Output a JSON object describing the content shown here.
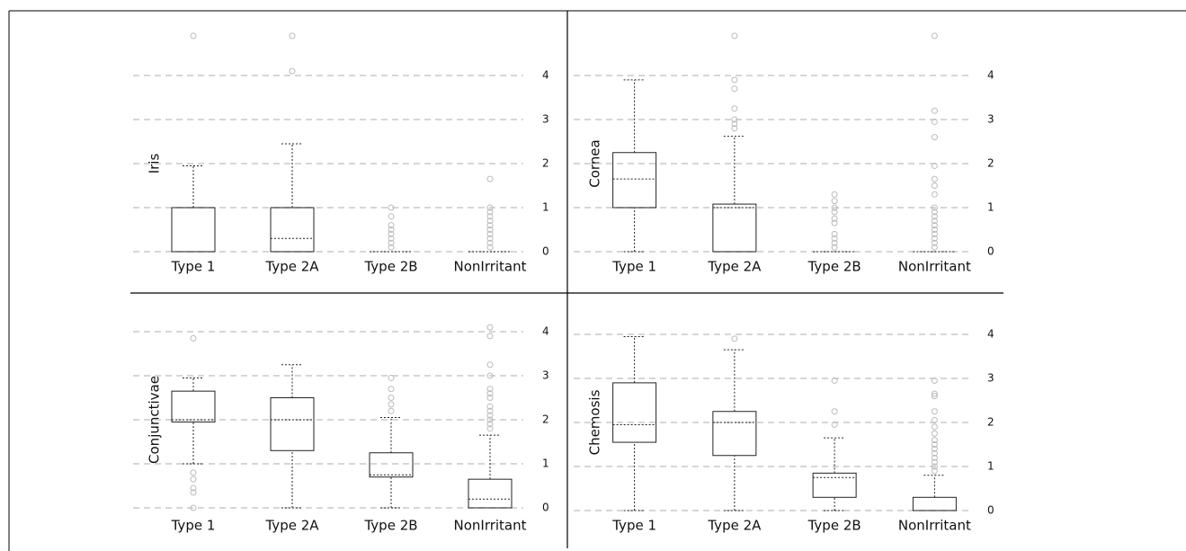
{
  "chart_data": [
    {
      "type": "box",
      "ylabel": "Iris",
      "categories": [
        "Type 1",
        "Type 2A",
        "Type 2B",
        "NonIrritant"
      ],
      "boxes": [
        {
          "whisker_low": 0,
          "q1": 0,
          "median": 1,
          "q3": 1,
          "whisker_high": 1.95,
          "outliers": [
            4.9
          ]
        },
        {
          "whisker_low": 0,
          "q1": 0,
          "median": 0.3,
          "q3": 1,
          "whisker_high": 2.45,
          "outliers": [
            4.1,
            4.9
          ]
        },
        {
          "whisker_low": 0,
          "q1": 0,
          "median": 0,
          "q3": 0,
          "whisker_high": 0,
          "outliers": [
            0.1,
            0.2,
            0.3,
            0.4,
            0.5,
            0.6,
            0.8,
            1.0
          ]
        },
        {
          "whisker_low": 0,
          "q1": 0,
          "median": 0,
          "q3": 0,
          "whisker_high": 0,
          "outliers": [
            0.1,
            0.2,
            0.3,
            0.4,
            0.5,
            0.6,
            0.7,
            0.8,
            0.9,
            1.0,
            1.65
          ]
        }
      ],
      "ylim": [
        -0.2,
        5.2
      ],
      "yticks": [
        0,
        1,
        2,
        3,
        4
      ],
      "grid": true
    },
    {
      "type": "box",
      "ylabel": "Cornea",
      "categories": [
        "Type 1",
        "Type 2A",
        "Type 2B",
        "NonIrritant"
      ],
      "boxes": [
        {
          "whisker_low": 0,
          "q1": 1,
          "median": 1.65,
          "q3": 2.25,
          "whisker_high": 3.9,
          "outliers": []
        },
        {
          "whisker_low": 0,
          "q1": 0,
          "median": 1.0,
          "q3": 1.08,
          "whisker_high": 2.62,
          "outliers": [
            2.8,
            2.9,
            3.0,
            3.25,
            3.7,
            3.9,
            4.9
          ]
        },
        {
          "whisker_low": 0,
          "q1": 0,
          "median": 0,
          "q3": 0,
          "whisker_high": 0,
          "outliers": [
            0.1,
            0.2,
            0.3,
            0.4,
            0.65,
            0.75,
            0.9,
            1.0,
            1.15,
            1.3
          ]
        },
        {
          "whisker_low": 0,
          "q1": 0,
          "median": 0,
          "q3": 0,
          "whisker_high": 0,
          "outliers": [
            0.1,
            0.2,
            0.3,
            0.4,
            0.5,
            0.6,
            0.7,
            0.8,
            0.9,
            1.0,
            1.3,
            1.5,
            1.65,
            1.95,
            2.6,
            2.95,
            3.2,
            4.9
          ]
        }
      ],
      "ylim": [
        -0.2,
        5.2
      ],
      "yticks": [
        0,
        1,
        2,
        3,
        4
      ],
      "grid": true
    },
    {
      "type": "box",
      "ylabel": "Conjunctivae",
      "categories": [
        "Type 1",
        "Type 2A",
        "Type 2B",
        "NonIrritant"
      ],
      "boxes": [
        {
          "whisker_low": 1.0,
          "q1": 1.95,
          "median": 2.0,
          "q3": 2.65,
          "whisker_high": 2.95,
          "outliers": [
            0,
            0.35,
            0.45,
            0.65,
            0.8,
            3.85
          ]
        },
        {
          "whisker_low": 0,
          "q1": 1.3,
          "median": 2.0,
          "q3": 2.5,
          "whisker_high": 3.25,
          "outliers": []
        },
        {
          "whisker_low": 0,
          "q1": 0.7,
          "median": 0.75,
          "q3": 1.25,
          "whisker_high": 2.05,
          "outliers": [
            2.2,
            2.35,
            2.5,
            2.7,
            2.95
          ]
        },
        {
          "whisker_low": 0,
          "q1": 0,
          "median": 0.2,
          "q3": 0.65,
          "whisker_high": 1.65,
          "outliers": [
            1.8,
            1.9,
            2.0,
            2.1,
            2.2,
            2.3,
            2.5,
            2.6,
            2.7,
            3.0,
            3.25,
            3.9,
            4.1
          ]
        }
      ],
      "ylim": [
        -0.2,
        5.2
      ],
      "yticks": [
        0,
        1,
        2,
        3,
        4
      ],
      "grid": true
    },
    {
      "type": "box",
      "ylabel": "Chemosis",
      "categories": [
        "Type 1",
        "Type 2A",
        "Type 2B",
        "NonIrritant"
      ],
      "boxes": [
        {
          "whisker_low": 0,
          "q1": 1.55,
          "median": 1.95,
          "q3": 2.9,
          "whisker_high": 3.95,
          "outliers": []
        },
        {
          "whisker_low": 0,
          "q1": 1.25,
          "median": 2.0,
          "q3": 2.25,
          "whisker_high": 3.65,
          "outliers": [
            3.9
          ]
        },
        {
          "whisker_low": 0,
          "q1": 0.3,
          "median": 0.75,
          "q3": 0.85,
          "whisker_high": 1.65,
          "outliers": [
            1.95,
            2.25,
            2.95
          ]
        },
        {
          "whisker_low": 0,
          "q1": 0,
          "median": 0,
          "q3": 0.3,
          "whisker_high": 0.8,
          "outliers": [
            0.9,
            1.0,
            1.1,
            1.2,
            1.3,
            1.4,
            1.5,
            1.6,
            1.75,
            1.9,
            2.05,
            2.25,
            2.6,
            2.65,
            2.95
          ]
        }
      ],
      "ylim": [
        -0.2,
        5.2
      ],
      "yticks": [
        0,
        1,
        2,
        3,
        4
      ],
      "grid": true
    }
  ]
}
